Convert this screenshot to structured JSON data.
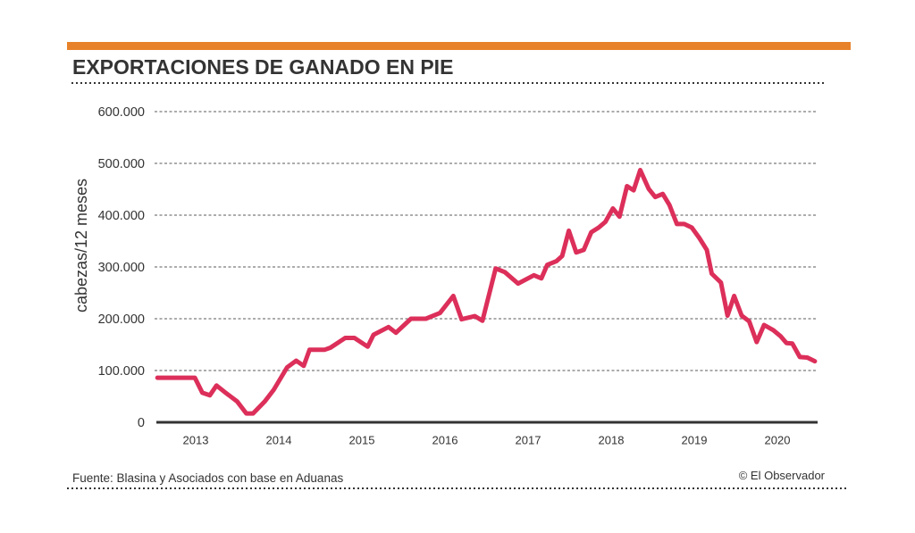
{
  "header": {
    "accent_color": "#E8822A"
  },
  "footer": {
    "source": "Fuente: Blasina y Asociados con base en Aduanas",
    "credit": "© El Observador"
  },
  "chart_data": {
    "type": "line",
    "title": "EXPORTACIONES DE GANADO EN PIE",
    "xlabel": "",
    "ylabel": "cabezas/12 meses",
    "xlim": [
      2013,
      2021
    ],
    "ylim": [
      0,
      600000
    ],
    "grid": true,
    "legend": "none",
    "yticks": [
      0,
      100000,
      200000,
      300000,
      400000,
      500000,
      600000
    ],
    "ytick_labels": [
      "0",
      "100.000",
      "200.000",
      "300.000",
      "400.000",
      "500.000",
      "600.000"
    ],
    "xticks": [
      2013.5,
      2014.5,
      2015.5,
      2016.5,
      2017.5,
      2018.5,
      2019.5,
      2020.5
    ],
    "xtick_labels": [
      "2013",
      "2014",
      "2015",
      "2016",
      "2017",
      "2018",
      "2019",
      "2020"
    ],
    "series": [
      {
        "color": "#DC2F5A",
        "x": [
          2013.04,
          2013.49,
          2013.58,
          2013.67,
          2013.75,
          2013.86,
          2014.0,
          2014.11,
          2014.19,
          2014.33,
          2014.44,
          2014.6,
          2014.71,
          2014.8,
          2014.87,
          2015.05,
          2015.12,
          2015.3,
          2015.41,
          2015.57,
          2015.64,
          2015.82,
          2015.91,
          2016.09,
          2016.27,
          2016.44,
          2016.6,
          2016.7,
          2016.86,
          2016.95,
          2017.11,
          2017.22,
          2017.38,
          2017.57,
          2017.66,
          2017.73,
          2017.84,
          2017.91,
          2017.99,
          2018.08,
          2018.17,
          2018.26,
          2018.35,
          2018.43,
          2018.52,
          2018.6,
          2018.69,
          2018.77,
          2018.85,
          2018.95,
          2019.03,
          2019.12,
          2019.2,
          2019.29,
          2019.38,
          2019.47,
          2019.56,
          2019.65,
          2019.71,
          2019.82,
          2019.9,
          2019.98,
          2020.07,
          2020.16,
          2020.25,
          2020.34,
          2020.45,
          2020.54,
          2020.61,
          2020.68,
          2020.77,
          2020.86,
          2020.95
        ],
        "y": [
          86000,
          86000,
          57000,
          52000,
          71000,
          57000,
          40000,
          17000,
          17000,
          40000,
          63000,
          106000,
          119000,
          109000,
          140000,
          140000,
          144000,
          163000,
          163000,
          146000,
          169000,
          184000,
          173000,
          200000,
          200000,
          211000,
          244000,
          199000,
          205000,
          196000,
          297000,
          290000,
          268000,
          284000,
          278000,
          304000,
          311000,
          321000,
          370000,
          328000,
          333000,
          367000,
          376000,
          387000,
          413000,
          397000,
          456000,
          448000,
          487000,
          451000,
          435000,
          441000,
          420000,
          383000,
          383000,
          376000,
          356000,
          333000,
          287000,
          270000,
          206000,
          244000,
          206000,
          195000,
          155000,
          188000,
          178000,
          166000,
          153000,
          152000,
          126000,
          125000,
          118000
        ]
      }
    ]
  }
}
